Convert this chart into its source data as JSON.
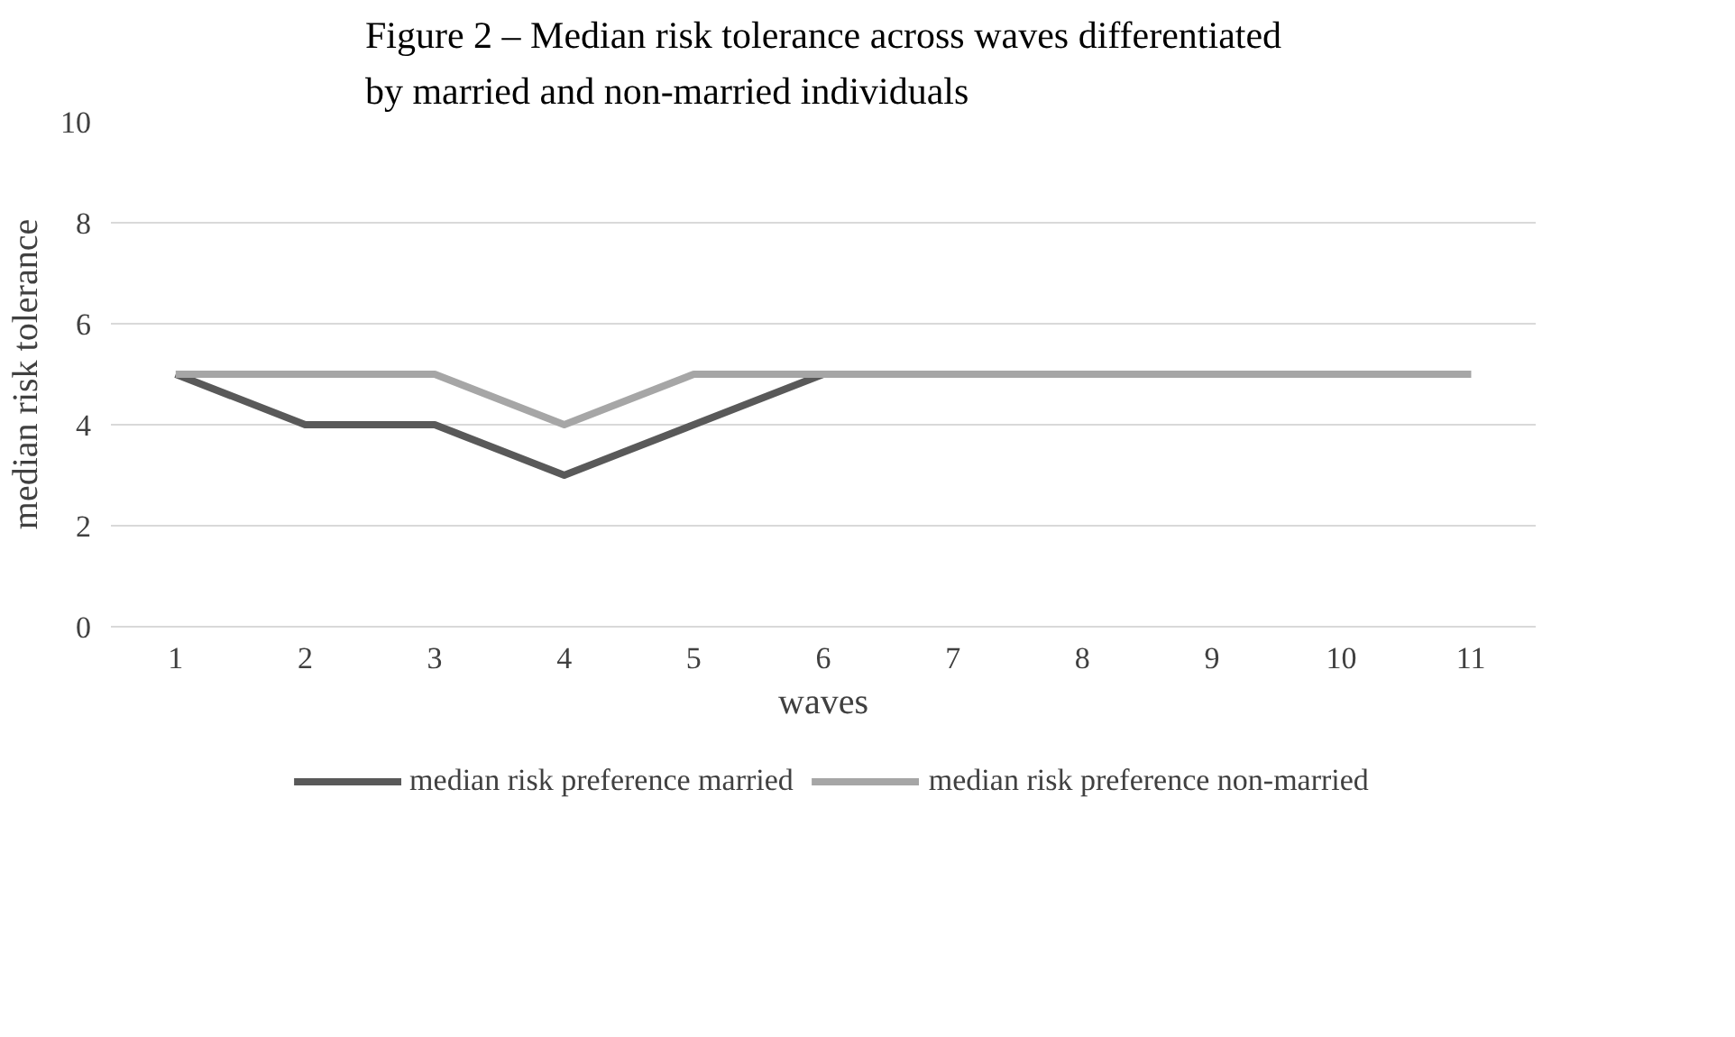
{
  "chart_data": {
    "type": "line",
    "title": "Figure 2 – Median risk tolerance across waves differentiated by married and non-married individuals",
    "xlabel": "waves",
    "ylabel": "median risk tolerance",
    "categories": [
      "1",
      "2",
      "3",
      "4",
      "5",
      "6",
      "7",
      "8",
      "9",
      "10",
      "11"
    ],
    "series": [
      {
        "name": "median risk preference married",
        "color": "#595959",
        "values": [
          5,
          4,
          4,
          3,
          4,
          5,
          5,
          5,
          5,
          5,
          5
        ]
      },
      {
        "name": "median risk preference non-married",
        "color": "#a6a6a6",
        "values": [
          5,
          5,
          5,
          4,
          5,
          5,
          5,
          5,
          5,
          5,
          5
        ]
      }
    ],
    "ylim": [
      0,
      10
    ],
    "yticks": [
      0,
      2,
      4,
      6,
      8,
      10
    ],
    "grid": "y",
    "legend": "bottom",
    "marker": "none",
    "line_style": "solid"
  }
}
